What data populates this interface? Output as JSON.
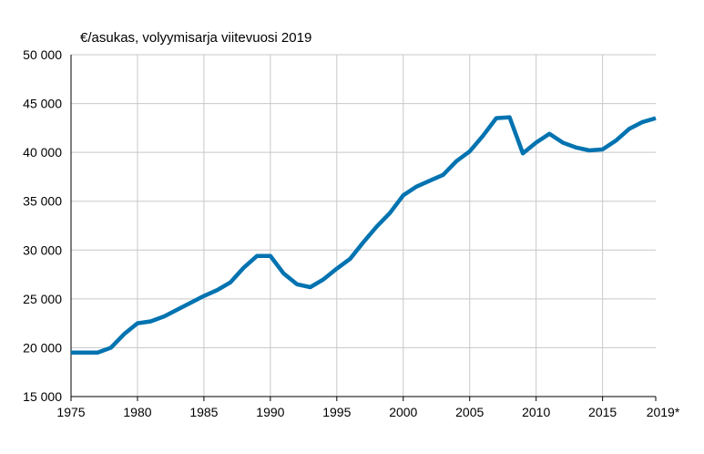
{
  "chart_data": {
    "type": "line",
    "ylabel": "€/asukas, volyymisarja viitevuosi 2019",
    "xlim": [
      1975,
      2019
    ],
    "ylim": [
      15000,
      50000
    ],
    "yticks": [
      15000,
      20000,
      25000,
      30000,
      35000,
      40000,
      45000,
      50000
    ],
    "ytick_labels": [
      "15 000",
      "20 000",
      "25 000",
      "30 000",
      "35 000",
      "40 000",
      "45 000",
      "50 000"
    ],
    "xticks": [
      1975,
      1980,
      1985,
      1990,
      1995,
      2000,
      2005,
      2010,
      2015,
      2019
    ],
    "xtick_labels": [
      "1975",
      "1980",
      "1985",
      "1990",
      "1995",
      "2000",
      "2005",
      "2010",
      "2015",
      "2019*"
    ],
    "grid": true,
    "line_color": "#0073b0",
    "series": [
      {
        "x": [
          1975,
          1976,
          1977,
          1978,
          1979,
          1980,
          1981,
          1982,
          1983,
          1984,
          1985,
          1986,
          1987,
          1988,
          1989,
          1990,
          1991,
          1992,
          1993,
          1994,
          1995,
          1996,
          1997,
          1998,
          1999,
          2000,
          2001,
          2002,
          2003,
          2004,
          2005,
          2006,
          2007,
          2008,
          2009,
          2010,
          2011,
          2012,
          2013,
          2014,
          2015,
          2016,
          2017,
          2018,
          2019
        ],
        "values": [
          19500,
          19500,
          19500,
          20000,
          21400,
          22500,
          22700,
          23200,
          23900,
          24600,
          25300,
          25900,
          26700,
          28200,
          29400,
          29400,
          27600,
          26500,
          26200,
          27000,
          28100,
          29100,
          30800,
          32400,
          33800,
          35600,
          36500,
          37100,
          37700,
          39100,
          40100,
          41700,
          43500,
          43600,
          39900,
          41000,
          41900,
          41000,
          40500,
          40200,
          40300,
          41200,
          42400,
          43100,
          43500
        ]
      }
    ]
  }
}
